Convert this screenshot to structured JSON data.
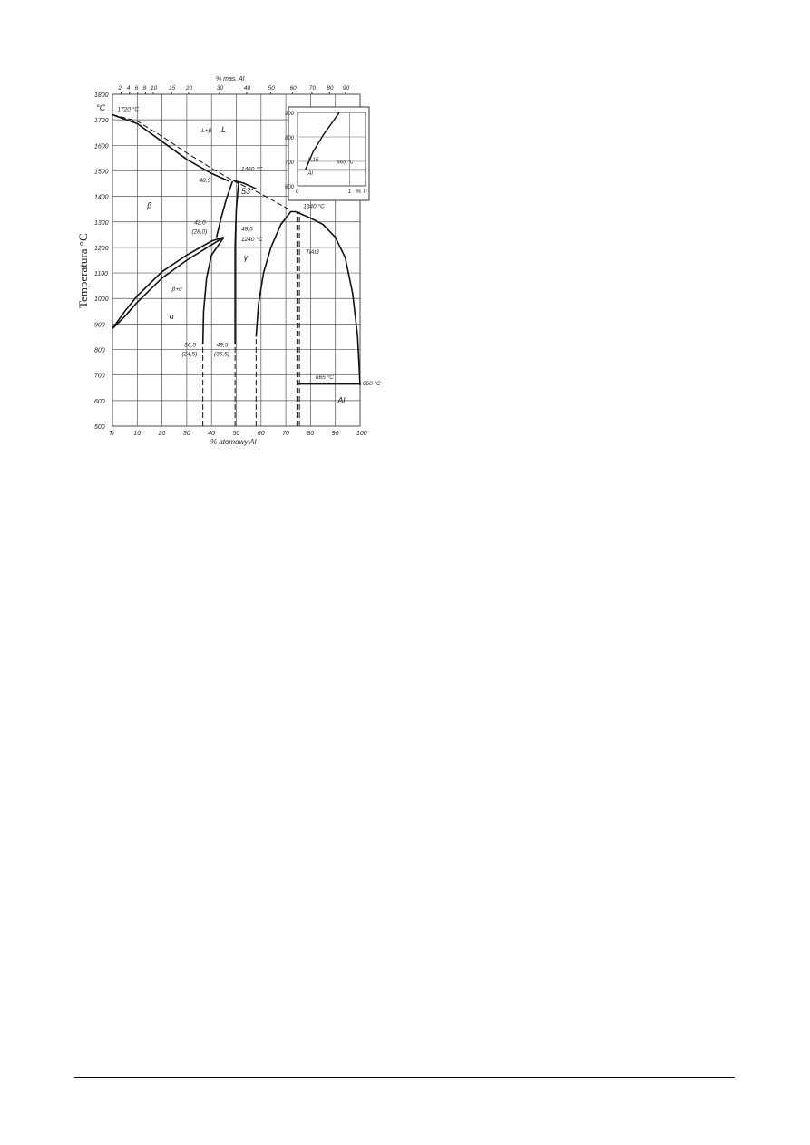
{
  "chart_data": {
    "type": "phase-diagram",
    "xlabel": "% atomowy Al",
    "x2label": "% mas. Al",
    "ylabel": "Temperatura °C",
    "yunit": "°C",
    "xlim": [
      0,
      100
    ],
    "ylim": [
      500,
      1800
    ],
    "grid": true,
    "x_ticks": [
      "Ti",
      "10",
      "20",
      "30",
      "40",
      "50",
      "60",
      "70",
      "80",
      "90",
      "100"
    ],
    "x_tick_values": [
      0,
      10,
      20,
      30,
      40,
      50,
      60,
      70,
      80,
      90,
      100
    ],
    "x2_ticks": [
      2,
      4,
      6,
      8,
      10,
      15,
      20,
      30,
      40,
      50,
      60,
      70,
      80,
      90
    ],
    "y_ticks": [
      500,
      600,
      700,
      800,
      900,
      1000,
      1100,
      1200,
      1300,
      1400,
      1500,
      1600,
      1700,
      1800
    ],
    "curves": [
      {
        "style": "solid",
        "points": [
          [
            0,
            1720
          ],
          [
            10,
            1685
          ],
          [
            20,
            1615
          ],
          [
            30,
            1545
          ],
          [
            40,
            1490
          ],
          [
            47,
            1460
          ]
        ]
      },
      {
        "style": "solid",
        "points": [
          [
            49,
            1462
          ],
          [
            53,
            1452
          ],
          [
            58,
            1430
          ]
        ]
      },
      {
        "style": "solid",
        "points": [
          [
            74,
            1340
          ],
          [
            80,
            1315
          ],
          [
            85,
            1290
          ],
          [
            90,
            1240
          ],
          [
            94,
            1160
          ],
          [
            97,
            1020
          ],
          [
            99,
            850
          ],
          [
            100,
            660
          ]
        ]
      },
      {
        "style": "dashed",
        "points": [
          [
            0,
            1720
          ],
          [
            10,
            1695
          ],
          [
            20,
            1635
          ],
          [
            30,
            1570
          ],
          [
            40,
            1510
          ],
          [
            50,
            1455
          ],
          [
            60,
            1410
          ],
          [
            72,
            1345
          ]
        ]
      },
      {
        "style": "solid",
        "points": [
          [
            0,
            882
          ],
          [
            5,
            950
          ],
          [
            10,
            1010
          ],
          [
            20,
            1105
          ],
          [
            30,
            1170
          ],
          [
            40,
            1225
          ],
          [
            45,
            1240
          ]
        ]
      },
      {
        "style": "solid",
        "points": [
          [
            0,
            882
          ],
          [
            5,
            930
          ],
          [
            10,
            985
          ],
          [
            20,
            1080
          ],
          [
            30,
            1150
          ],
          [
            40,
            1210
          ],
          [
            45,
            1240
          ]
        ]
      },
      {
        "style": "solid",
        "points": [
          [
            42,
            1240
          ],
          [
            44,
            1320
          ],
          [
            46,
            1390
          ],
          [
            48.5,
            1460
          ]
        ]
      },
      {
        "style": "solid",
        "points": [
          [
            36.5,
            820
          ],
          [
            36.8,
            950
          ],
          [
            38,
            1080
          ],
          [
            40,
            1170
          ],
          [
            45,
            1240
          ]
        ]
      },
      {
        "style": "solid",
        "points": [
          [
            49.5,
            820
          ],
          [
            49.5,
            1200
          ],
          [
            50,
            1350
          ],
          [
            51,
            1460
          ]
        ]
      },
      {
        "style": "solid",
        "points": [
          [
            58,
            850
          ],
          [
            59,
            980
          ],
          [
            61,
            1100
          ],
          [
            64,
            1200
          ],
          [
            68,
            1290
          ],
          [
            72,
            1340
          ],
          [
            74,
            1340
          ]
        ]
      },
      {
        "style": "solid",
        "points": [
          [
            75,
            665
          ],
          [
            100,
            665
          ]
        ]
      },
      {
        "style": "dashed",
        "points": [
          [
            36.5,
            500
          ],
          [
            36.5,
            820
          ]
        ]
      },
      {
        "style": "dashed",
        "points": [
          [
            49.5,
            500
          ],
          [
            49.5,
            820
          ]
        ]
      },
      {
        "style": "dashed",
        "points": [
          [
            58,
            500
          ],
          [
            58,
            850
          ]
        ]
      },
      {
        "style": "dashed",
        "points": [
          [
            74.5,
            500
          ],
          [
            74.5,
            1340
          ]
        ]
      },
      {
        "style": "dashed",
        "points": [
          [
            75.5,
            500
          ],
          [
            75.5,
            1340
          ]
        ]
      }
    ],
    "annotations": [
      {
        "text": "1720 °C",
        "x": 2,
        "y": 1735
      },
      {
        "text": "L+β",
        "x": 36,
        "y": 1650
      },
      {
        "text": "L",
        "x": 44,
        "y": 1650
      },
      {
        "text": "1460 °C",
        "x": 52,
        "y": 1500
      },
      {
        "text": "48,5",
        "x": 35,
        "y": 1455
      },
      {
        "text": "53",
        "x": 52,
        "y": 1410
      },
      {
        "text": "β",
        "x": 14,
        "y": 1355
      },
      {
        "text": "42,0",
        "x": 33,
        "y": 1290
      },
      {
        "text": "(28,0)",
        "x": 32,
        "y": 1255
      },
      {
        "text": "48,5",
        "x": 52,
        "y": 1265
      },
      {
        "text": "1240 °C",
        "x": 52,
        "y": 1225
      },
      {
        "text": "γ",
        "x": 53,
        "y": 1150
      },
      {
        "text": "TiAl3",
        "x": 78,
        "y": 1175
      },
      {
        "text": "1340 °C",
        "x": 77,
        "y": 1355
      },
      {
        "text": "β+α",
        "x": 24,
        "y": 1030
      },
      {
        "text": "α",
        "x": 23,
        "y": 920
      },
      {
        "text": "36,5",
        "x": 29,
        "y": 810
      },
      {
        "text": "(24,5)",
        "x": 28,
        "y": 775
      },
      {
        "text": "49,5",
        "x": 42,
        "y": 810
      },
      {
        "text": "(35,5)",
        "x": 41,
        "y": 775
      },
      {
        "text": "665 °C",
        "x": 82,
        "y": 685
      },
      {
        "text": "660 °C",
        "x": 101,
        "y": 660
      },
      {
        "text": "Al",
        "x": 91,
        "y": 590
      }
    ],
    "inset": {
      "xlabel": "% Ti",
      "x_ticks": [
        "0",
        "1"
      ],
      "y_ticks": [
        600,
        700,
        800,
        900
      ],
      "xlim": [
        0,
        1.3
      ],
      "ylim": [
        600,
        900
      ],
      "curve": [
        [
          0.15,
          665
        ],
        [
          0.3,
          740
        ],
        [
          0.5,
          810
        ],
        [
          0.7,
          870
        ],
        [
          0.8,
          900
        ]
      ],
      "line": [
        [
          0,
          665
        ],
        [
          1.3,
          665
        ]
      ],
      "annotations": [
        "0,15",
        "665 °C",
        "Al"
      ]
    }
  }
}
